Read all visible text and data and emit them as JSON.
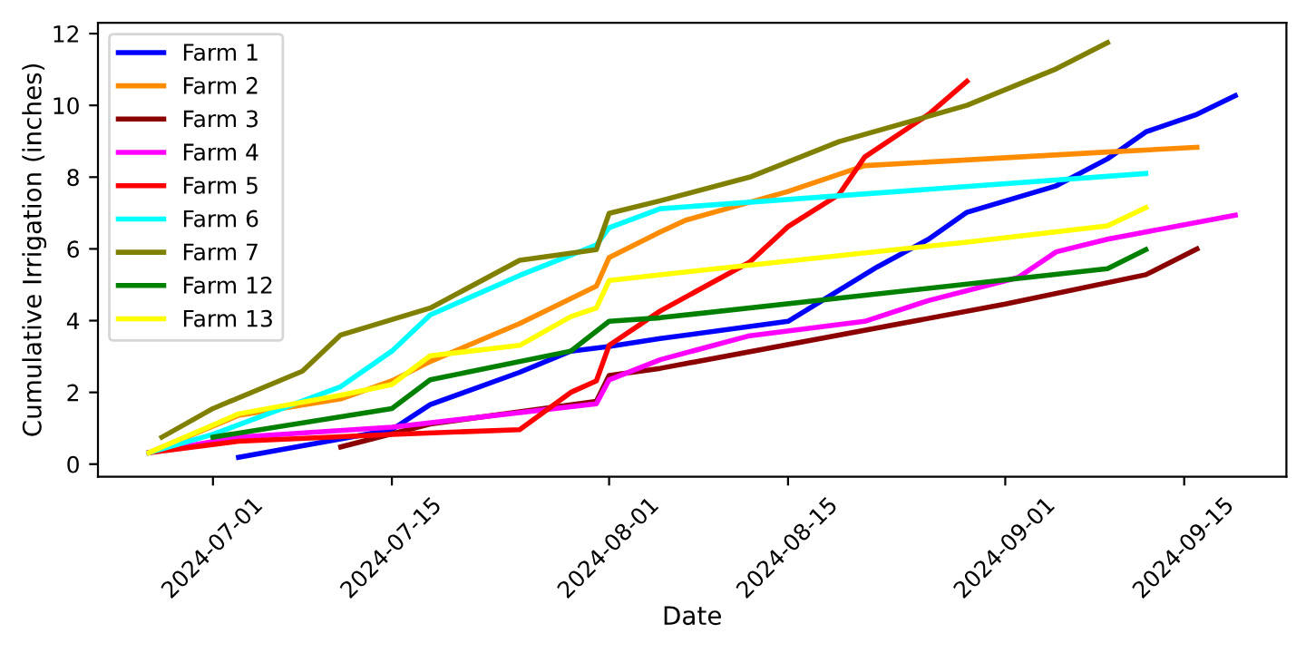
{
  "chart_data": {
    "type": "line",
    "xlabel": "Date",
    "ylabel": "Cumulative Irrigation (inches)",
    "xlim": [
      "2024-06-22",
      "2024-09-23"
    ],
    "xticks": [
      "2024-07-01",
      "2024-07-15",
      "2024-08-01",
      "2024-08-15",
      "2024-09-01",
      "2024-09-15"
    ],
    "ylim": [
      -0.35,
      12.3
    ],
    "yticks": [
      0,
      2,
      4,
      6,
      8,
      10,
      12
    ],
    "grid": false,
    "legend": "top left",
    "marker": "none",
    "line_style": "solid",
    "series": [
      {
        "name": "Farm 1",
        "color": "#0000ff",
        "x": [
          "2024-07-03",
          "2024-07-15",
          "2024-07-18",
          "2024-07-25",
          "2024-07-29",
          "2024-08-01",
          "2024-08-05",
          "2024-08-15",
          "2024-08-22",
          "2024-08-26",
          "2024-08-29",
          "2024-09-05",
          "2024-09-09",
          "2024-09-12",
          "2024-09-16",
          "2024-09-19"
        ],
        "values": [
          0.19,
          0.96,
          1.66,
          2.56,
          3.15,
          3.28,
          3.5,
          3.98,
          5.5,
          6.27,
          7.02,
          7.76,
          8.51,
          9.26,
          9.75,
          10.27
        ]
      },
      {
        "name": "Farm 2",
        "color": "#ff8c00",
        "x": [
          "2024-06-26",
          "2024-07-03",
          "2024-07-11",
          "2024-07-15",
          "2024-07-18",
          "2024-07-25",
          "2024-07-31",
          "2024-08-01",
          "2024-08-05",
          "2024-08-07",
          "2024-08-15",
          "2024-08-21",
          "2024-09-09",
          "2024-09-16"
        ],
        "values": [
          0.32,
          1.36,
          1.82,
          2.32,
          2.86,
          3.92,
          4.96,
          5.76,
          6.47,
          6.8,
          7.6,
          8.32,
          8.7,
          8.83
        ]
      },
      {
        "name": "Farm 3",
        "color": "#8b0000",
        "x": [
          "2024-07-11",
          "2024-07-18",
          "2024-07-31",
          "2024-08-01",
          "2024-08-05",
          "2024-09-01",
          "2024-09-12",
          "2024-09-16"
        ],
        "values": [
          0.48,
          1.12,
          1.75,
          2.47,
          2.67,
          4.46,
          5.28,
          6.0
        ]
      },
      {
        "name": "Farm 4",
        "color": "#ff00ff",
        "x": [
          "2024-06-26",
          "2024-07-03",
          "2024-07-15",
          "2024-07-31",
          "2024-08-01",
          "2024-08-05",
          "2024-08-12",
          "2024-08-21",
          "2024-08-26",
          "2024-09-02",
          "2024-09-05",
          "2024-09-09",
          "2024-09-19"
        ],
        "values": [
          0.32,
          0.75,
          1.03,
          1.68,
          2.35,
          2.91,
          3.58,
          3.98,
          4.56,
          5.2,
          5.92,
          6.27,
          6.94
        ]
      },
      {
        "name": "Farm 5",
        "color": "#ff0000",
        "x": [
          "2024-06-26",
          "2024-07-03",
          "2024-07-15",
          "2024-07-25",
          "2024-07-29",
          "2024-07-31",
          "2024-08-01",
          "2024-08-05",
          "2024-08-12",
          "2024-08-15",
          "2024-08-19",
          "2024-08-21",
          "2024-08-26",
          "2024-08-29"
        ],
        "values": [
          0.32,
          0.64,
          0.83,
          0.96,
          2.0,
          2.32,
          3.31,
          4.27,
          5.63,
          6.62,
          7.52,
          8.56,
          9.75,
          10.67
        ]
      },
      {
        "name": "Farm 6",
        "color": "#00ffff",
        "x": [
          "2024-06-26",
          "2024-07-01",
          "2024-07-11",
          "2024-07-15",
          "2024-07-18",
          "2024-07-25",
          "2024-07-31",
          "2024-08-01",
          "2024-08-05",
          "2024-09-12"
        ],
        "values": [
          0.32,
          0.83,
          2.16,
          3.15,
          4.16,
          5.26,
          6.11,
          6.59,
          7.12,
          8.1
        ]
      },
      {
        "name": "Farm 7",
        "color": "#808000",
        "x": [
          "2024-06-27",
          "2024-07-01",
          "2024-07-08",
          "2024-07-11",
          "2024-07-15",
          "2024-07-18",
          "2024-07-25",
          "2024-07-31",
          "2024-08-01",
          "2024-08-05",
          "2024-08-12",
          "2024-08-19",
          "2024-08-29",
          "2024-09-05",
          "2024-09-09"
        ],
        "values": [
          0.75,
          1.55,
          2.59,
          3.6,
          4.03,
          4.35,
          5.68,
          5.98,
          6.99,
          7.34,
          8.0,
          8.99,
          10.0,
          11.02,
          11.75
        ]
      },
      {
        "name": "Farm 12",
        "color": "#008000",
        "x": [
          "2024-07-01",
          "2024-07-15",
          "2024-07-18",
          "2024-07-29",
          "2024-08-01",
          "2024-08-05",
          "2024-09-09",
          "2024-09-12"
        ],
        "values": [
          0.75,
          1.55,
          2.35,
          3.15,
          3.98,
          4.08,
          5.45,
          5.98
        ]
      },
      {
        "name": "Farm 13",
        "color": "#ffff00",
        "x": [
          "2024-06-26",
          "2024-07-03",
          "2024-07-11",
          "2024-07-15",
          "2024-07-18",
          "2024-07-25",
          "2024-07-29",
          "2024-07-31",
          "2024-08-01",
          "2024-08-05",
          "2024-08-29",
          "2024-09-09",
          "2024-09-12"
        ],
        "values": [
          0.32,
          1.4,
          1.92,
          2.22,
          3.02,
          3.31,
          4.11,
          4.35,
          5.12,
          5.28,
          6.19,
          6.64,
          7.15
        ]
      }
    ]
  }
}
